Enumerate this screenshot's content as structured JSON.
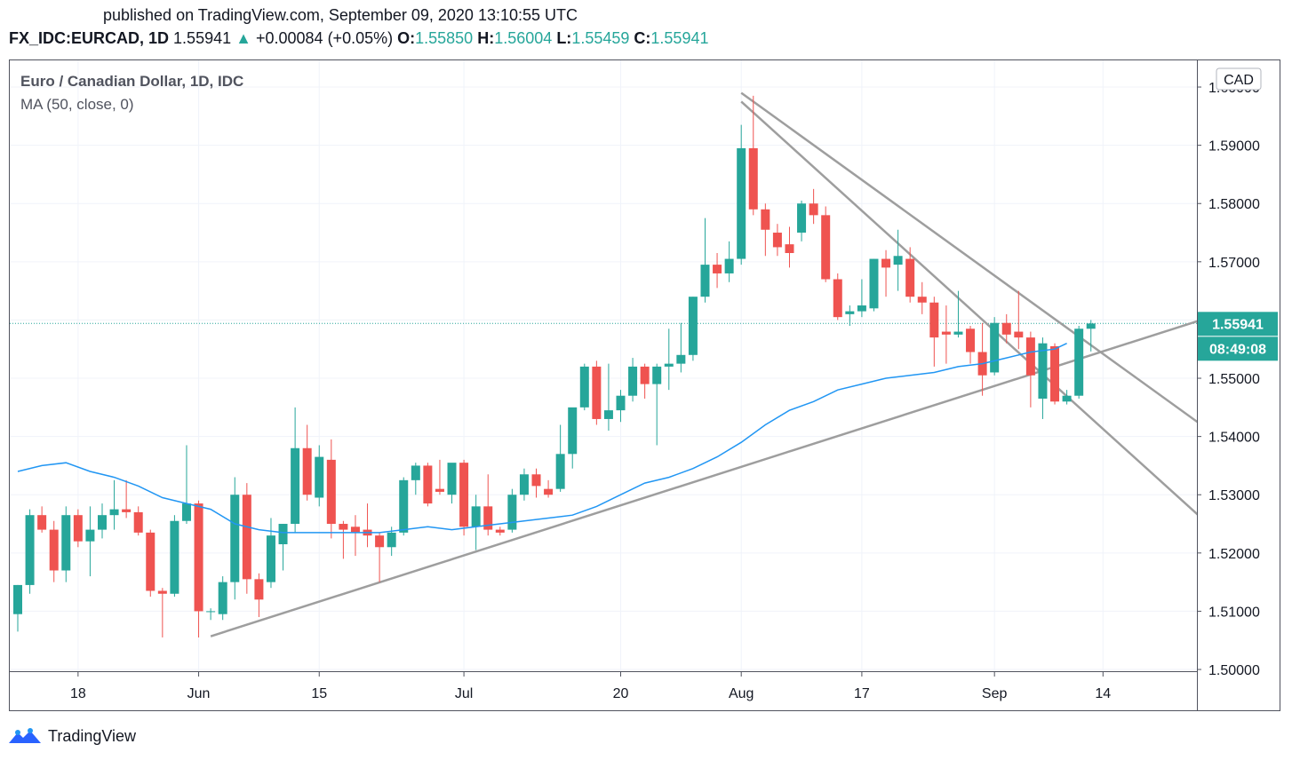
{
  "header": {
    "published": "published on TradingView.com, September 09, 2020 13:10:55 UTC",
    "symbol": "FX_IDC:EURCAD, 1D",
    "last": "1.55941",
    "change": "+0.00084 (+0.05%)",
    "open_label": "O:",
    "open": "1.55850",
    "high_label": "H:",
    "high": "1.56004",
    "low_label": "L:",
    "low": "1.55459",
    "close_label": "C:",
    "close": "1.55941"
  },
  "legend": {
    "title": "Euro / Canadian Dollar, 1D, IDC",
    "indicator": "MA (50, close, 0)"
  },
  "axis": {
    "currency": "CAD",
    "price_tag": "1.55941",
    "countdown_tag": "08:49:08"
  },
  "footer": {
    "brand": "TradingView"
  },
  "colors": {
    "up": "#26a69a",
    "down": "#ef5350",
    "ma": "#2196f3",
    "trendline": "#9e9e9e",
    "grid": "#f0f3fa"
  },
  "chart_data": {
    "type": "candlestick",
    "title": "Euro / Canadian Dollar, 1D, IDC",
    "y_ticks": [
      "1.50000",
      "1.51000",
      "1.52000",
      "1.53000",
      "1.54000",
      "1.55000",
      "1.56000",
      "1.57000",
      "1.58000",
      "1.59000",
      "1.60000"
    ],
    "x_ticks": [
      {
        "label": "18",
        "index": 5
      },
      {
        "label": "Jun",
        "index": 15
      },
      {
        "label": "15",
        "index": 25
      },
      {
        "label": "Jul",
        "index": 37
      },
      {
        "label": "20",
        "index": 50
      },
      {
        "label": "Aug",
        "index": 60
      },
      {
        "label": "17",
        "index": 70
      },
      {
        "label": "Sep",
        "index": 81
      },
      {
        "label": "14",
        "index": 90
      }
    ],
    "ylim": [
      1.4997,
      1.6055
    ],
    "candles": [
      [
        1.5095,
        1.5145,
        1.5065,
        1.5145
      ],
      [
        1.5145,
        1.5275,
        1.513,
        1.5265
      ],
      [
        1.5265,
        1.528,
        1.5235,
        1.524
      ],
      [
        1.524,
        1.5255,
        1.515,
        1.517
      ],
      [
        1.517,
        1.528,
        1.515,
        1.5265
      ],
      [
        1.5265,
        1.5275,
        1.521,
        1.522
      ],
      [
        1.522,
        1.528,
        1.516,
        1.524
      ],
      [
        1.524,
        1.5285,
        1.5225,
        1.5265
      ],
      [
        1.5265,
        1.5325,
        1.524,
        1.5275
      ],
      [
        1.5275,
        1.5325,
        1.526,
        1.527
      ],
      [
        1.527,
        1.528,
        1.523,
        1.5235
      ],
      [
        1.5235,
        1.524,
        1.5125,
        1.5135
      ],
      [
        1.5135,
        1.514,
        1.5055,
        1.513
      ],
      [
        1.513,
        1.5265,
        1.5125,
        1.5255
      ],
      [
        1.5255,
        1.5385,
        1.525,
        1.5285
      ],
      [
        1.5285,
        1.529,
        1.5055,
        1.51
      ],
      [
        1.51,
        1.5105,
        1.5085,
        1.51
      ],
      [
        1.5095,
        1.516,
        1.5085,
        1.515
      ],
      [
        1.515,
        1.533,
        1.512,
        1.53
      ],
      [
        1.53,
        1.532,
        1.513,
        1.5155
      ],
      [
        1.5155,
        1.5165,
        1.509,
        1.512
      ],
      [
        1.515,
        1.526,
        1.514,
        1.523
      ],
      [
        1.5215,
        1.525,
        1.517,
        1.525
      ],
      [
        1.525,
        1.545,
        1.5235,
        1.538
      ],
      [
        1.538,
        1.542,
        1.529,
        1.53
      ],
      [
        1.5295,
        1.5385,
        1.528,
        1.5365
      ],
      [
        1.536,
        1.5395,
        1.5225,
        1.525
      ],
      [
        1.525,
        1.5255,
        1.519,
        1.524
      ],
      [
        1.5245,
        1.5265,
        1.5195,
        1.5235
      ],
      [
        1.524,
        1.5285,
        1.521,
        1.523
      ],
      [
        1.523,
        1.5235,
        1.515,
        1.521
      ],
      [
        1.521,
        1.5245,
        1.5195,
        1.5235
      ],
      [
        1.5235,
        1.533,
        1.523,
        1.5325
      ],
      [
        1.5325,
        1.5355,
        1.53,
        1.535
      ],
      [
        1.535,
        1.5355,
        1.528,
        1.5285
      ],
      [
        1.531,
        1.536,
        1.53,
        1.5305
      ],
      [
        1.53,
        1.535,
        1.5285,
        1.5355
      ],
      [
        1.5355,
        1.536,
        1.523,
        1.5245
      ],
      [
        1.5245,
        1.53,
        1.5205,
        1.528
      ],
      [
        1.528,
        1.5335,
        1.523,
        1.524
      ],
      [
        1.524,
        1.5245,
        1.523,
        1.5235
      ],
      [
        1.524,
        1.531,
        1.5235,
        1.53
      ],
      [
        1.53,
        1.5345,
        1.529,
        1.5335
      ],
      [
        1.5335,
        1.5345,
        1.5295,
        1.5315
      ],
      [
        1.531,
        1.5325,
        1.5295,
        1.53
      ],
      [
        1.531,
        1.542,
        1.5305,
        1.537
      ],
      [
        1.537,
        1.5445,
        1.5345,
        1.545
      ],
      [
        1.545,
        1.5525,
        1.5445,
        1.552
      ],
      [
        1.552,
        1.553,
        1.542,
        1.543
      ],
      [
        1.543,
        1.5525,
        1.541,
        1.5445
      ],
      [
        1.5445,
        1.548,
        1.5425,
        1.547
      ],
      [
        1.547,
        1.5535,
        1.546,
        1.552
      ],
      [
        1.552,
        1.5525,
        1.5465,
        1.549
      ],
      [
        1.549,
        1.5525,
        1.5385,
        1.552
      ],
      [
        1.552,
        1.5585,
        1.548,
        1.5525
      ],
      [
        1.5525,
        1.5595,
        1.551,
        1.554
      ],
      [
        1.554,
        1.564,
        1.553,
        1.564
      ],
      [
        1.564,
        1.5775,
        1.563,
        1.5695
      ],
      [
        1.5695,
        1.5715,
        1.5655,
        1.568
      ],
      [
        1.568,
        1.5735,
        1.5665,
        1.5705
      ],
      [
        1.5705,
        1.5935,
        1.5695,
        1.5895
      ],
      [
        1.5895,
        1.5985,
        1.578,
        1.579
      ],
      [
        1.579,
        1.58,
        1.571,
        1.5755
      ],
      [
        1.575,
        1.5765,
        1.571,
        1.5725
      ],
      [
        1.573,
        1.576,
        1.569,
        1.5715
      ],
      [
        1.575,
        1.5805,
        1.5735,
        1.58
      ],
      [
        1.58,
        1.5825,
        1.5765,
        1.578
      ],
      [
        1.578,
        1.5795,
        1.5665,
        1.567
      ],
      [
        1.567,
        1.568,
        1.56,
        1.5605
      ],
      [
        1.561,
        1.5625,
        1.559,
        1.5615
      ],
      [
        1.5615,
        1.567,
        1.5605,
        1.5625
      ],
      [
        1.562,
        1.5705,
        1.5615,
        1.5705
      ],
      [
        1.5705,
        1.572,
        1.564,
        1.569
      ],
      [
        1.5695,
        1.5755,
        1.565,
        1.571
      ],
      [
        1.5705,
        1.5725,
        1.563,
        1.564
      ],
      [
        1.564,
        1.5665,
        1.561,
        1.563
      ],
      [
        1.563,
        1.564,
        1.552,
        1.557
      ],
      [
        1.558,
        1.5625,
        1.5525,
        1.5575
      ],
      [
        1.5575,
        1.565,
        1.557,
        1.558
      ],
      [
        1.5585,
        1.559,
        1.5525,
        1.5545
      ],
      [
        1.5545,
        1.5595,
        1.547,
        1.5505
      ],
      [
        1.551,
        1.5605,
        1.5505,
        1.5595
      ],
      [
        1.5595,
        1.561,
        1.556,
        1.5575
      ],
      [
        1.558,
        1.565,
        1.555,
        1.557
      ],
      [
        1.557,
        1.558,
        1.545,
        1.5505
      ],
      [
        1.5465,
        1.557,
        1.543,
        1.556
      ],
      [
        1.5555,
        1.556,
        1.5455,
        1.546
      ],
      [
        1.546,
        1.548,
        1.5455,
        1.547
      ],
      [
        1.547,
        1.559,
        1.5465,
        1.5585
      ],
      [
        1.5585,
        1.56,
        1.5546,
        1.5594
      ]
    ],
    "ma50": [
      [
        0,
        1.534
      ],
      [
        2,
        1.535
      ],
      [
        4,
        1.5355
      ],
      [
        6,
        1.534
      ],
      [
        8,
        1.533
      ],
      [
        10,
        1.5315
      ],
      [
        12,
        1.5295
      ],
      [
        14,
        1.5285
      ],
      [
        16,
        1.5275
      ],
      [
        18,
        1.525
      ],
      [
        20,
        1.524
      ],
      [
        22,
        1.5235
      ],
      [
        24,
        1.5235
      ],
      [
        26,
        1.5235
      ],
      [
        28,
        1.5235
      ],
      [
        30,
        1.5235
      ],
      [
        32,
        1.524
      ],
      [
        34,
        1.5245
      ],
      [
        36,
        1.524
      ],
      [
        38,
        1.5245
      ],
      [
        40,
        1.525
      ],
      [
        42,
        1.5255
      ],
      [
        44,
        1.526
      ],
      [
        46,
        1.5265
      ],
      [
        48,
        1.528
      ],
      [
        50,
        1.53
      ],
      [
        52,
        1.532
      ],
      [
        54,
        1.533
      ],
      [
        56,
        1.5345
      ],
      [
        58,
        1.5365
      ],
      [
        60,
        1.539
      ],
      [
        62,
        1.542
      ],
      [
        64,
        1.5445
      ],
      [
        66,
        1.546
      ],
      [
        68,
        1.548
      ],
      [
        70,
        1.549
      ],
      [
        72,
        1.55
      ],
      [
        74,
        1.5505
      ],
      [
        76,
        1.551
      ],
      [
        78,
        1.552
      ],
      [
        80,
        1.5525
      ],
      [
        82,
        1.5535
      ],
      [
        84,
        1.5545
      ],
      [
        86,
        1.555
      ],
      [
        87,
        1.556
      ]
    ],
    "trendlines": [
      {
        "from": [
          16,
          1.5057
        ],
        "to": [
          99.5,
          1.5609
        ]
      },
      {
        "from": [
          60,
          1.599
        ],
        "to": [
          99.5,
          1.54
        ]
      },
      {
        "from": [
          60,
          1.5975
        ],
        "to": [
          99.5,
          1.5235
        ]
      }
    ],
    "last_price": 1.55941
  }
}
